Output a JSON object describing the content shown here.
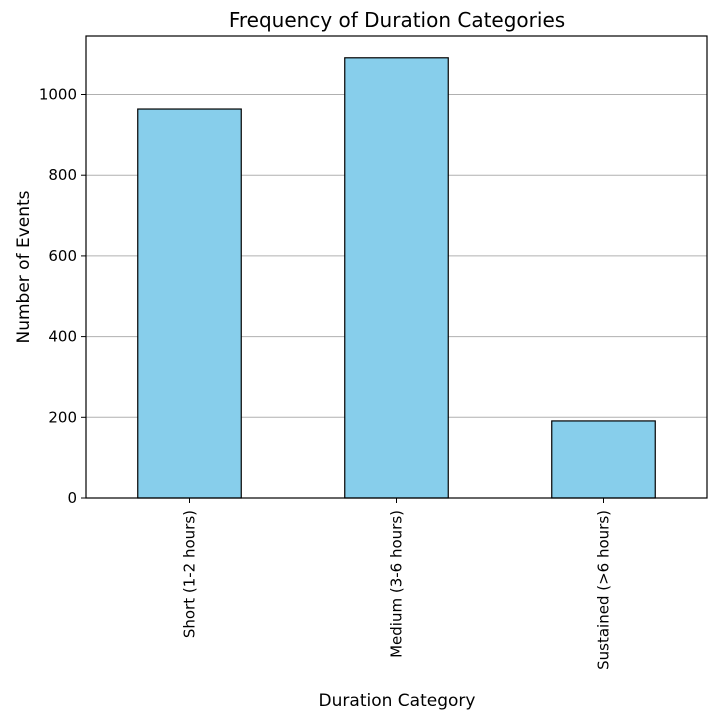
{
  "chart_data": {
    "type": "bar",
    "title": "Frequency of Duration Categories",
    "xlabel": "Duration Category",
    "ylabel": "Number of Events",
    "categories": [
      "Short (1-2 hours)",
      "Medium (3-6 hours)",
      "Sustained (>6 hours)"
    ],
    "values": [
      964,
      1091,
      191
    ],
    "ylim": [
      0,
      1145
    ],
    "yticks": [
      0,
      200,
      400,
      600,
      800,
      1000
    ],
    "ytick_labels": [
      "0",
      "200",
      "400",
      "600",
      "800",
      "1000"
    ],
    "grid": "y-axis",
    "bar_color": "#87CEEB",
    "edge_color": "#000000"
  }
}
